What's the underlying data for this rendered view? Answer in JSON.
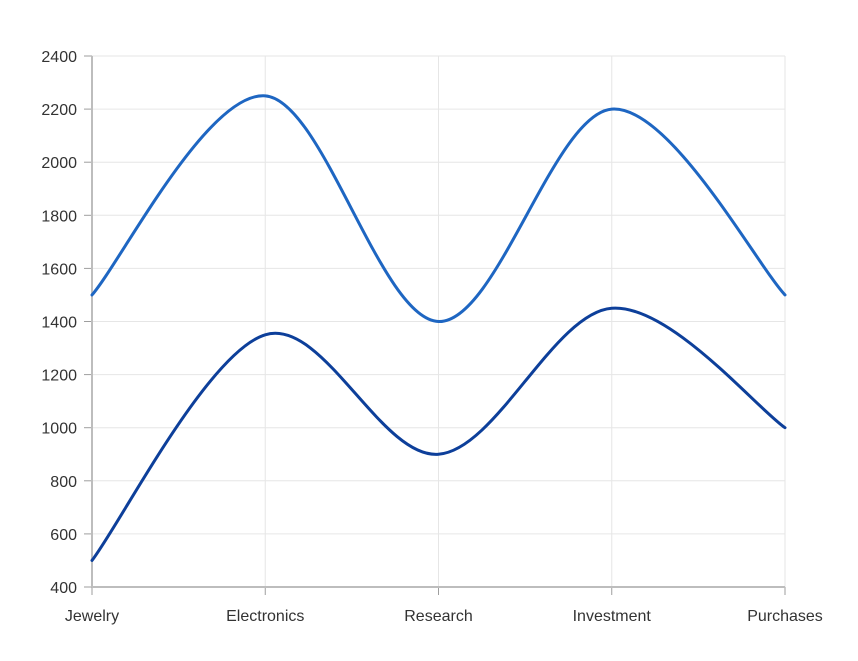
{
  "chart_data": {
    "type": "line",
    "title": "",
    "xlabel": "",
    "ylabel": "",
    "categories": [
      "Jewelry",
      "Electronics",
      "Research",
      "Investment",
      "Purchases"
    ],
    "series": [
      {
        "values": [
          1500,
          2250,
          1400,
          2200,
          1500
        ],
        "color": "#1e66c2"
      },
      {
        "values": [
          500,
          1350,
          900,
          1450,
          1000
        ],
        "color": "#0d3f9a"
      }
    ],
    "ylim": [
      400,
      2400
    ],
    "yticks": [
      "400",
      "600",
      "800",
      "1000",
      "1200",
      "1400",
      "1600",
      "1800",
      "2000",
      "2200",
      "2400"
    ],
    "grid": true,
    "smooth": true,
    "legend": "none"
  }
}
